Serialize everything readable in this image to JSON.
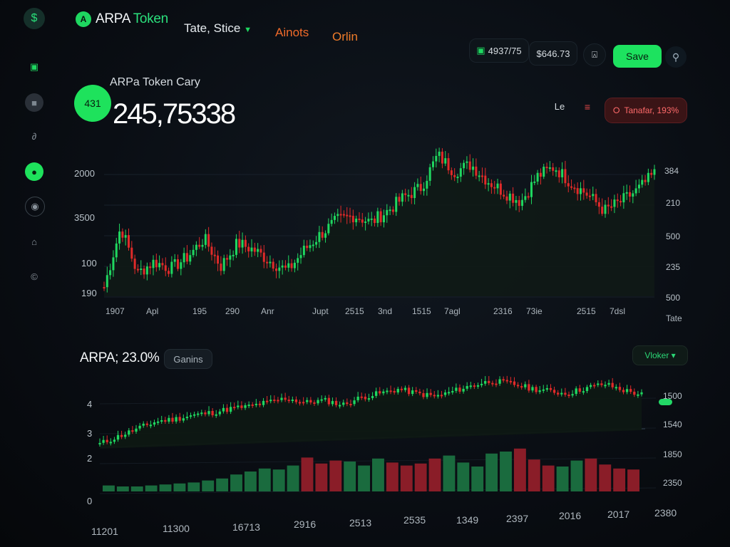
{
  "sidebar": {
    "logo_icon": "dollar-icon",
    "items": [
      {
        "name": "wallet-icon",
        "glyph": "▣",
        "active": false
      },
      {
        "name": "lock-icon",
        "glyph": "■",
        "active": false
      },
      {
        "name": "link-icon",
        "glyph": "∂",
        "active": false
      },
      {
        "name": "chat-icon",
        "glyph": "●",
        "active": true
      },
      {
        "name": "shield-icon",
        "glyph": "◉",
        "active": false
      },
      {
        "name": "gamepad-icon",
        "glyph": "⌂",
        "active": false
      },
      {
        "name": "info-icon",
        "glyph": "©",
        "active": false
      }
    ]
  },
  "header": {
    "brand_name": "ARPA",
    "brand_accent": "Token",
    "brand_logo_letter": "A",
    "nav": [
      {
        "label": "Tate, Stice",
        "color": "#e6ebef",
        "dropdown": true
      },
      {
        "label": "Ainots",
        "color": "#f06a2a",
        "dropdown": false
      },
      {
        "label": "Orlin",
        "color": "#f07c2a",
        "dropdown": false
      }
    ],
    "stat_one": "4937/75",
    "stat_two": "$646.73",
    "save_label": "Save",
    "bell_icon": "notification-icon",
    "search_icon": "search-icon"
  },
  "summary": {
    "badge": "431",
    "title": "ARPa Token Cary",
    "price": "245,75338",
    "range_label": "Le",
    "alert_label": "Tanafar, 193%",
    "colors": {
      "up": "#1fd760",
      "down": "#e02a2a"
    }
  },
  "main_chart": {
    "y_left": [
      "2000",
      "3500",
      "100",
      "190"
    ],
    "y_right": [
      "384",
      "210",
      "500",
      "235",
      "500"
    ],
    "x": [
      "1907",
      "Apl",
      "195",
      "290",
      "Anr",
      "Jupt",
      "2515",
      "3nd",
      "1515",
      "7agl",
      "2316",
      "73ie",
      "2515",
      "7dsl"
    ],
    "x_right_label": "Tate"
  },
  "lower": {
    "title": "ARPA; 23.0%",
    "gains_label": "Ganins",
    "vol_label": "Vloker ▾",
    "y_left": [
      "4",
      "3",
      "2",
      "0"
    ],
    "y_right": [
      "1500",
      "1540",
      "1850",
      "2350"
    ],
    "x": [
      "11201",
      "11300",
      "16713",
      "2916",
      "2513",
      "2535",
      "1349",
      "2397",
      "2016",
      "2017",
      "2380"
    ]
  },
  "chart_data": [
    {
      "type": "candlestick",
      "title": "ARPa Token Cary",
      "xlabel": "",
      "ylabel": "",
      "trend": [
        190,
        450,
        250,
        300,
        270,
        320,
        400,
        280,
        380,
        350,
        300,
        260,
        350,
        420,
        480,
        500,
        470,
        520,
        580,
        620,
        760,
        690,
        720,
        650,
        600,
        560,
        670,
        710,
        640,
        590,
        520,
        560,
        610,
        680
      ]
    },
    {
      "type": "bar",
      "title": "ARPA; 23.0%",
      "xlabel": "",
      "ylabel": "",
      "trend": [
        1.2,
        1.6,
        2.0,
        2.4,
        2.5,
        2.7,
        2.8,
        3.0,
        3.1,
        3.3,
        3.5,
        3.2,
        3.3,
        3.0,
        3.4,
        3.6,
        3.8,
        3.5,
        3.3,
        3.6,
        3.9,
        4.1,
        3.9,
        3.6,
        3.4,
        3.2,
        3.5,
        3.7,
        3.3,
        3.0
      ],
      "volume": [
        0.6,
        0.5,
        0.5,
        0.6,
        0.7,
        0.8,
        0.9,
        1.1,
        1.3,
        1.7,
        2.0,
        2.3,
        2.2,
        2.6,
        3.4,
        2.8,
        3.1,
        3.0,
        2.6,
        3.3,
        2.9,
        2.6,
        2.8,
        3.3,
        3.6,
        2.9,
        2.5,
        3.8,
        4.0,
        4.3,
        3.2,
        2.6,
        2.5,
        3.1,
        3.3,
        2.7,
        2.3,
        2.2
      ]
    }
  ]
}
